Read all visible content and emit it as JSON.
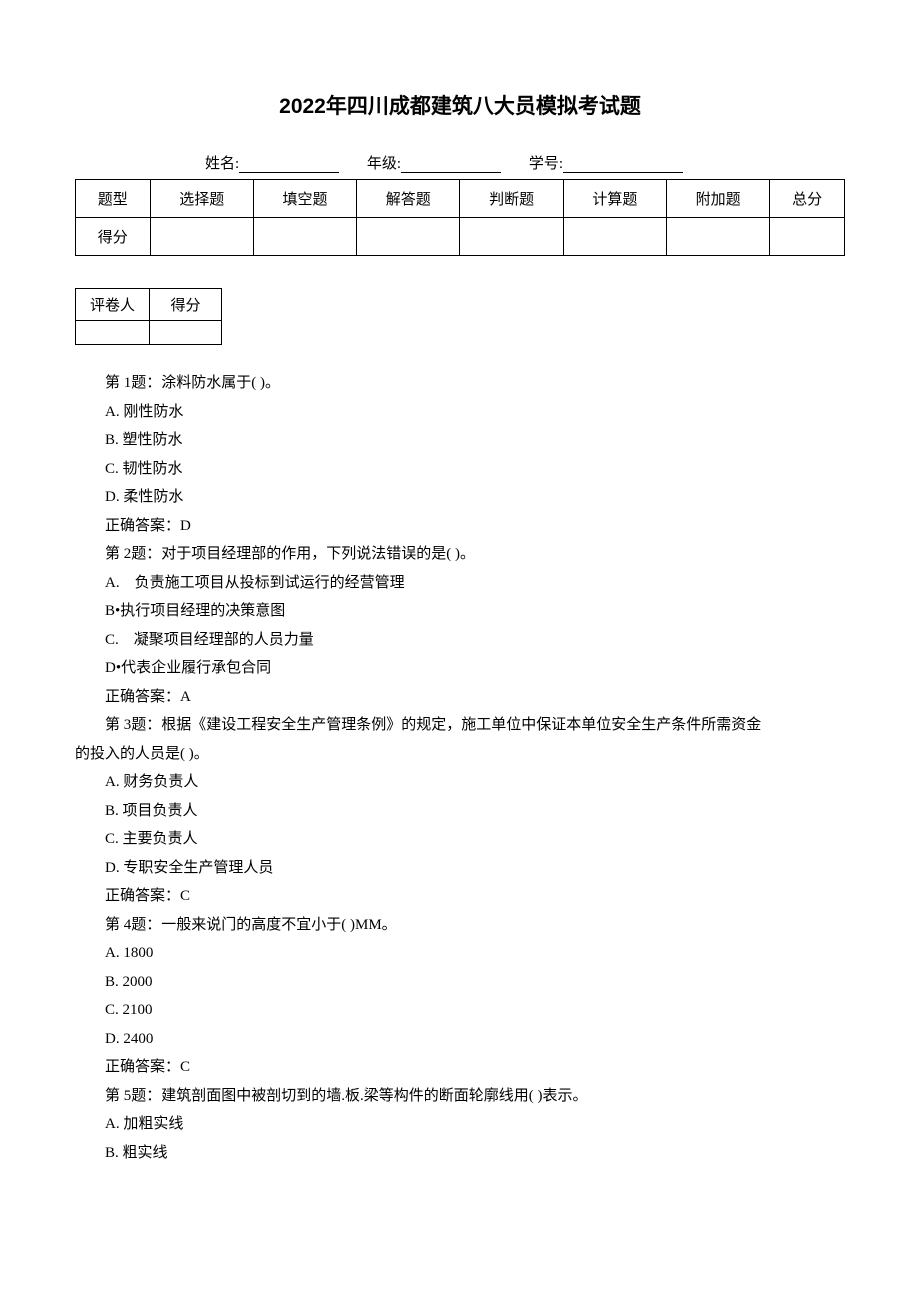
{
  "title": "2022年四川成都建筑八大员模拟考试题",
  "info": {
    "name_label": "姓名:",
    "grade_label": "年级:",
    "id_label": "学号:"
  },
  "score_table": {
    "headers": [
      "题型",
      "选择题",
      "填空题",
      "解答题",
      "判断题",
      "计算题",
      "附加题",
      "总分"
    ],
    "row_label": "得分"
  },
  "grader_table": {
    "grader_label": "评卷人",
    "score_label": "得分"
  },
  "questions": [
    {
      "prefix": "第 1题：",
      "text": "涂料防水属于( )。",
      "options": [
        "A. 刚性防水",
        "B. 塑性防水",
        "C. 韧性防水",
        "D. 柔性防水"
      ],
      "answer_label": "正确答案：",
      "answer": "D"
    },
    {
      "prefix": "第 2题：",
      "text": "对于项目经理部的作用，下列说法错误的是( )。",
      "options": [
        "A.　负责施工项目从投标到试运行的经营管理",
        "B•执行项目经理的决策意图",
        "C.　凝聚项目经理部的人员力量",
        "D•代表企业履行承包合同"
      ],
      "answer_label": "正确答案：",
      "answer": "A"
    },
    {
      "prefix": "第 3题：",
      "text_line1": "根据《建设工程安全生产管理条例》的规定，施工单位中保证本单位安全生产条件所需资金",
      "text_line2": "的投入的人员是( )。",
      "options": [
        "A. 财务负责人",
        "B. 项目负责人",
        "C. 主要负责人",
        "D. 专职安全生产管理人员"
      ],
      "answer_label": "正确答案：",
      "answer": "C"
    },
    {
      "prefix": "第 4题：",
      "text": "一般来说门的高度不宜小于( )MM。",
      "options": [
        "A. 1800",
        "B. 2000",
        "C. 2100",
        "D. 2400"
      ],
      "answer_label": "正确答案：",
      "answer": "C"
    },
    {
      "prefix": "第 5题：",
      "text": "建筑剖面图中被剖切到的墙.板.梁等构件的断面轮廓线用( )表示。",
      "options": [
        "A. 加粗实线",
        "B. 粗实线"
      ]
    }
  ]
}
